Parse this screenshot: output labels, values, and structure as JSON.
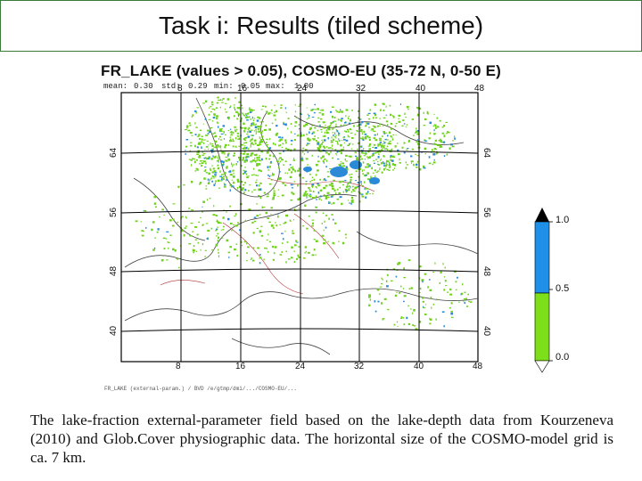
{
  "slide": {
    "title": "Task i: Results (tiled scheme)",
    "caption": "The lake-fraction external-parameter field based on the lake-depth data from Kourzeneva (2010) and Glob.Cover physiographic data. The horizontal size of the COSMO-model grid is ca. 7 km."
  },
  "map": {
    "title": "FR_LAKE (values > 0.05), COSMO-EU (35-72 N, 0-50 E)",
    "stats": {
      "mean_label": "mean:",
      "mean_value": "0.30",
      "std_label": "std:",
      "std_value": "0.29",
      "min_label": "min:",
      "min_value": "0.05",
      "max_label": "max:",
      "max_value": "1.00"
    },
    "lon_ticks": [
      "8",
      "16",
      "24",
      "32",
      "40",
      "48"
    ],
    "lat_ticks": [
      "64",
      "56",
      "48",
      "40"
    ],
    "footnote": "FR_LAKE (external-param.) / BVD /e/gtmp/dmi/.../COSMO-EU/..."
  },
  "colorbar": {
    "labels": [
      "1.0",
      "0.5",
      "0.0"
    ],
    "colors": {
      "upper": "#1e90e8",
      "lower": "#7ddf1a",
      "lake_blue": "#2a8ad8",
      "green": "#6fd21a"
    }
  }
}
